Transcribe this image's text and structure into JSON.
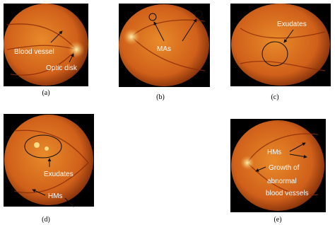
{
  "panels": [
    {
      "label": "(a)",
      "annotations": [
        "Blood vessel",
        "Optic disk"
      ]
    },
    {
      "label": "(b)",
      "annotations": [
        "MAs"
      ]
    },
    {
      "label": "(c)",
      "annotations": [
        "Exudates"
      ]
    },
    {
      "label": "(d)",
      "annotations": [
        "Exudates",
        "HMs"
      ]
    },
    {
      "label": "(e)",
      "annotations": [
        "HMs",
        "Growth of",
        "abnormal",
        "blood vessels"
      ]
    }
  ]
}
